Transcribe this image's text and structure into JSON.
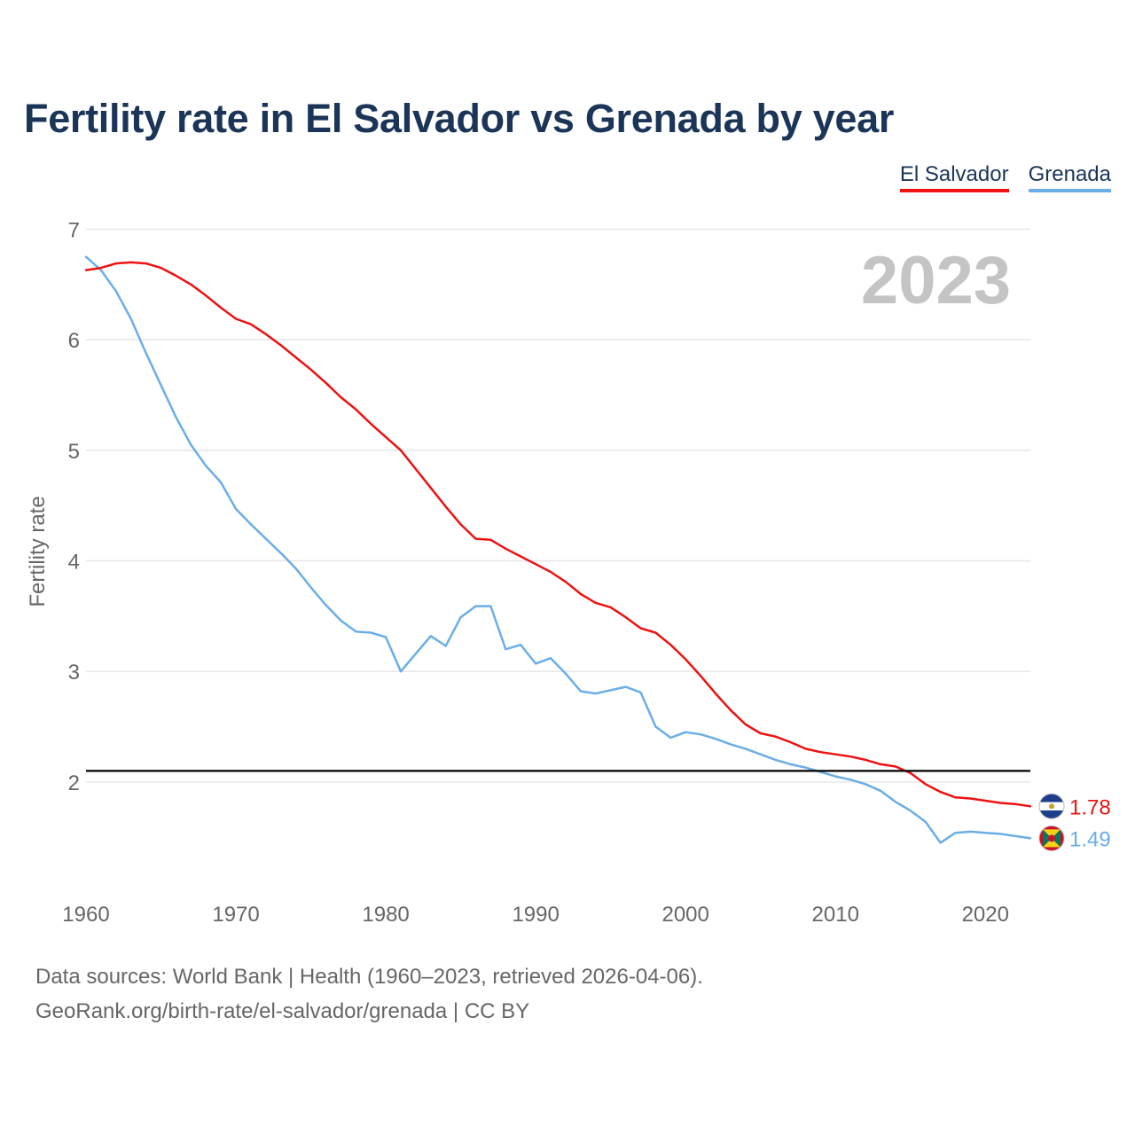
{
  "chart_data": {
    "type": "line",
    "title": "Fertility rate in El Salvador vs Grenada by year",
    "ylabel": "Fertility rate",
    "xlabel": "",
    "xlim": [
      1960,
      2023
    ],
    "ylim": [
      1,
      7
    ],
    "xticks": [
      "1960",
      "1970",
      "1980",
      "1990",
      "2000",
      "2010",
      "2020"
    ],
    "yticks": [
      "2",
      "3",
      "4",
      "5",
      "6",
      "7"
    ],
    "year_label": "2023",
    "reference_line": 2.1,
    "x": [
      1960,
      1961,
      1962,
      1963,
      1964,
      1965,
      1966,
      1967,
      1968,
      1969,
      1970,
      1971,
      1972,
      1973,
      1974,
      1975,
      1976,
      1977,
      1978,
      1979,
      1980,
      1981,
      1982,
      1983,
      1984,
      1985,
      1986,
      1987,
      1988,
      1989,
      1990,
      1991,
      1992,
      1993,
      1994,
      1995,
      1996,
      1997,
      1998,
      1999,
      2000,
      2001,
      2002,
      2003,
      2004,
      2005,
      2006,
      2007,
      2008,
      2009,
      2010,
      2011,
      2012,
      2013,
      2014,
      2015,
      2016,
      2017,
      2018,
      2019,
      2020,
      2021,
      2022,
      2023
    ],
    "series": [
      {
        "name": "El Salvador",
        "color": "#ee1111",
        "end_label": "1.78",
        "values": [
          6.63,
          6.65,
          6.69,
          6.7,
          6.69,
          6.65,
          6.58,
          6.5,
          6.4,
          6.29,
          6.19,
          6.14,
          6.05,
          5.95,
          5.84,
          5.73,
          5.61,
          5.48,
          5.37,
          5.24,
          5.12,
          5.0,
          4.83,
          4.66,
          4.49,
          4.33,
          4.2,
          4.19,
          4.11,
          4.04,
          3.97,
          3.9,
          3.81,
          3.7,
          3.62,
          3.58,
          3.49,
          3.39,
          3.35,
          3.24,
          3.11,
          2.96,
          2.8,
          2.65,
          2.52,
          2.44,
          2.41,
          2.36,
          2.3,
          2.27,
          2.25,
          2.23,
          2.2,
          2.16,
          2.14,
          2.08,
          1.98,
          1.91,
          1.86,
          1.85,
          1.83,
          1.81,
          1.8,
          1.78
        ]
      },
      {
        "name": "Grenada",
        "color": "#6aaee8",
        "end_label": "1.49",
        "values": [
          6.75,
          6.63,
          6.44,
          6.19,
          5.88,
          5.59,
          5.3,
          5.05,
          4.86,
          4.71,
          4.47,
          4.33,
          4.2,
          4.07,
          3.93,
          3.76,
          3.6,
          3.46,
          3.36,
          3.35,
          3.31,
          3.0,
          3.16,
          3.32,
          3.23,
          3.49,
          3.59,
          3.59,
          3.2,
          3.24,
          3.07,
          3.12,
          2.98,
          2.82,
          2.8,
          2.83,
          2.86,
          2.81,
          2.5,
          2.4,
          2.45,
          2.43,
          2.39,
          2.34,
          2.3,
          2.25,
          2.2,
          2.16,
          2.13,
          2.09,
          2.05,
          2.02,
          1.98,
          1.92,
          1.82,
          1.74,
          1.64,
          1.45,
          1.54,
          1.55,
          1.54,
          1.53,
          1.51,
          1.49
        ]
      }
    ]
  },
  "footer": {
    "sources": "Data sources: World Bank | Health (1960–2023, retrieved 2026-04-06).",
    "link": "GeoRank.org/birth-rate/el-salvador/grenada | CC BY"
  }
}
